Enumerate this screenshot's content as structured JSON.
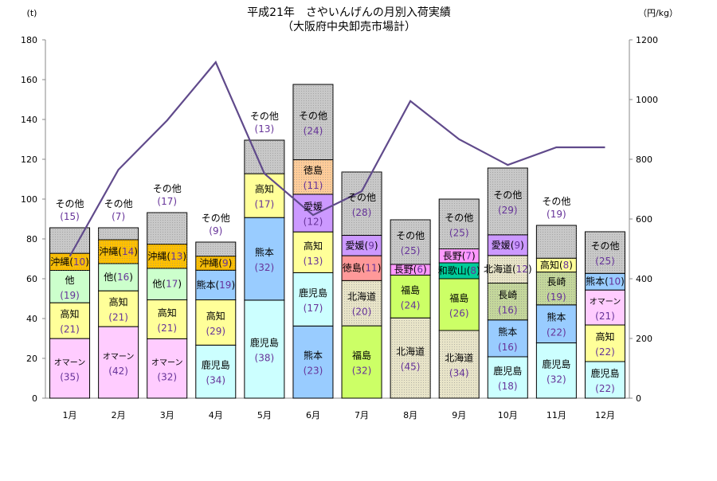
{
  "chart_data": {
    "type": "bar",
    "stacked": true,
    "title": "平成21年　さやいんげんの月別入荷実績",
    "subtitle": "（大阪府中央卸売市場計）",
    "ylabel": "(t)",
    "y2label": "（円/kg）",
    "ylim": [
      0,
      180
    ],
    "y2lim": [
      0,
      1200
    ],
    "yticks": [
      0,
      20,
      40,
      60,
      80,
      100,
      120,
      140,
      160,
      180
    ],
    "y2ticks": [
      0,
      200,
      400,
      600,
      800,
      1000,
      1200
    ],
    "grid": false,
    "categories": [
      "1月",
      "2月",
      "3月",
      "4月",
      "5月",
      "6月",
      "7月",
      "8月",
      "9月",
      "10月",
      "11月",
      "12月"
    ],
    "totals_t": [
      85.6,
      85.6,
      93.2,
      78.4,
      129.6,
      157.6,
      113.6,
      89.6,
      100,
      115.6,
      86.8,
      83.6
    ],
    "line_price_yen_per_kg": [
      475,
      765,
      930,
      1125,
      752,
      613,
      693,
      995,
      867,
      781,
      840,
      840
    ],
    "segments_percent": [
      [
        {
          "origin": "オマーン",
          "pct": 35
        },
        {
          "origin": "高知",
          "pct": 21
        },
        {
          "origin": "他",
          "pct": 19
        },
        {
          "origin": "沖縄",
          "pct": 10
        },
        {
          "origin": "その他",
          "pct": 15
        }
      ],
      [
        {
          "origin": "オマーン",
          "pct": 42
        },
        {
          "origin": "高知",
          "pct": 21
        },
        {
          "origin": "他",
          "pct": 16
        },
        {
          "origin": "沖縄",
          "pct": 14
        },
        {
          "origin": "その他",
          "pct": 7
        }
      ],
      [
        {
          "origin": "オマーン",
          "pct": 32
        },
        {
          "origin": "高知",
          "pct": 21
        },
        {
          "origin": "他",
          "pct": 17
        },
        {
          "origin": "沖縄",
          "pct": 13
        },
        {
          "origin": "その他",
          "pct": 17
        }
      ],
      [
        {
          "origin": "鹿児島",
          "pct": 34
        },
        {
          "origin": "高知",
          "pct": 29
        },
        {
          "origin": "熊本",
          "pct": 19
        },
        {
          "origin": "沖縄",
          "pct": 9
        },
        {
          "origin": "その他",
          "pct": 9
        }
      ],
      [
        {
          "origin": "鹿児島",
          "pct": 38
        },
        {
          "origin": "熊本",
          "pct": 32
        },
        {
          "origin": "高知",
          "pct": 17
        },
        {
          "origin": "その他",
          "pct": 13
        }
      ],
      [
        {
          "origin": "熊本",
          "pct": 23
        },
        {
          "origin": "鹿児島",
          "pct": 17
        },
        {
          "origin": "高知",
          "pct": 13
        },
        {
          "origin": "愛媛",
          "pct": 12
        },
        {
          "origin": "徳島",
          "pct": 11
        },
        {
          "origin": "その他",
          "pct": 24
        }
      ],
      [
        {
          "origin": "福島",
          "pct": 32
        },
        {
          "origin": "北海道",
          "pct": 20
        },
        {
          "origin": "徳島",
          "pct": 11
        },
        {
          "origin": "愛媛",
          "pct": 9
        },
        {
          "origin": "その他",
          "pct": 28
        }
      ],
      [
        {
          "origin": "北海道",
          "pct": 45
        },
        {
          "origin": "福島",
          "pct": 24
        },
        {
          "origin": "長野",
          "pct": 6
        },
        {
          "origin": "その他",
          "pct": 25
        }
      ],
      [
        {
          "origin": "北海道",
          "pct": 34
        },
        {
          "origin": "福島",
          "pct": 26
        },
        {
          "origin": "和歌山",
          "pct": 8
        },
        {
          "origin": "長野",
          "pct": 7
        },
        {
          "origin": "その他",
          "pct": 25
        }
      ],
      [
        {
          "origin": "鹿児島",
          "pct": 18
        },
        {
          "origin": "熊本",
          "pct": 16
        },
        {
          "origin": "長崎",
          "pct": 16
        },
        {
          "origin": "北海道",
          "pct": 12
        },
        {
          "origin": "愛媛",
          "pct": 9
        },
        {
          "origin": "その他",
          "pct": 29
        }
      ],
      [
        {
          "origin": "鹿児島",
          "pct": 32
        },
        {
          "origin": "熊本",
          "pct": 22
        },
        {
          "origin": "長崎",
          "pct": 19
        },
        {
          "origin": "高知",
          "pct": 8
        },
        {
          "origin": "その他",
          "pct": 19
        }
      ],
      [
        {
          "origin": "鹿児島",
          "pct": 22
        },
        {
          "origin": "高知",
          "pct": 22
        },
        {
          "origin": "オマーン",
          "pct": 21
        },
        {
          "origin": "熊本",
          "pct": 10
        },
        {
          "origin": "その他",
          "pct": 25
        }
      ]
    ],
    "colors": {
      "オマーン": "#ffccff",
      "高知": "#ffff99",
      "他": "#ccffcc",
      "沖縄": "#ffc000",
      "その他": "#c8c8c8",
      "熊本": "#99ccff",
      "鹿児島": "#ccffff",
      "愛媛": "#cc99ff",
      "徳島_6月": "#ffcc99",
      "徳島": "#ff9999",
      "北海道": "#e8e4c8",
      "福島": "#ccff66",
      "長野": "#ff99ff",
      "和歌山": "#00cc99",
      "長崎": "#c4d79b",
      "line": "#604a8b",
      "label_number": "#663399"
    }
  }
}
